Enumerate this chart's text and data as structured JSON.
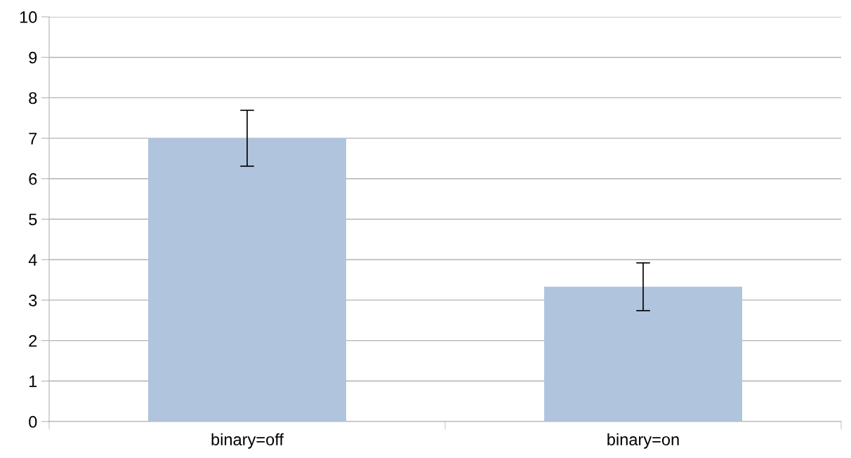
{
  "chart_data": {
    "type": "bar",
    "categories": [
      "binary=off",
      "binary=on"
    ],
    "values": [
      7.0,
      3.33
    ],
    "errors": [
      0.69,
      0.59
    ],
    "color": "#b0c4de",
    "ylim": [
      0,
      10
    ],
    "yticks": [
      0,
      1,
      2,
      3,
      4,
      5,
      6,
      7,
      8,
      9,
      10
    ],
    "grid": "y",
    "legend": false
  }
}
